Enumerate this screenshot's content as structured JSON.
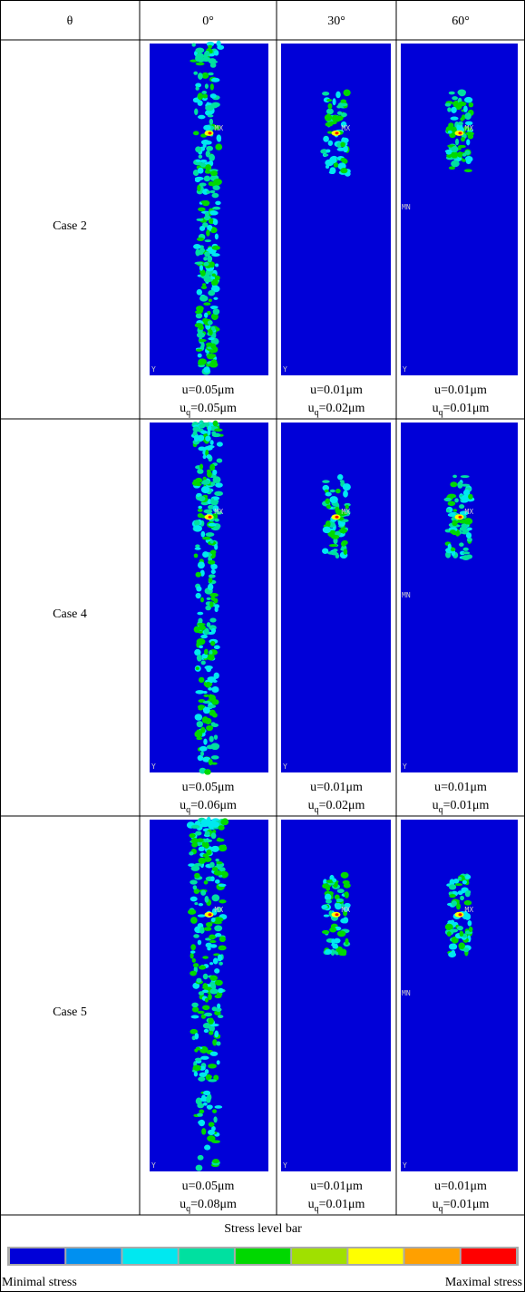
{
  "header": [
    "θ",
    "0°",
    "30°",
    "60°"
  ],
  "uq_symbol": {
    "base": "u",
    "sub": "q"
  },
  "rows": [
    {
      "case": "Case 2",
      "cells": [
        {
          "u": "u=0.05μm",
          "uq": "=0.05μm"
        },
        {
          "u": "u=0.01μm",
          "uq": "=0.02μm"
        },
        {
          "u": "u=0.01μm",
          "uq": "=0.01μm"
        }
      ]
    },
    {
      "case": "Case 4",
      "cells": [
        {
          "u": "u=0.05μm",
          "uq": "=0.06μm"
        },
        {
          "u": "u=0.01μm",
          "uq": "=0.02μm"
        },
        {
          "u": "u=0.01μm",
          "uq": "=0.01μm"
        }
      ]
    },
    {
      "case": "Case 5",
      "cells": [
        {
          "u": "u=0.05μm",
          "uq": "=0.08μm"
        },
        {
          "u": "u=0.01μm",
          "uq": "=0.01μm"
        },
        {
          "u": "u=0.01μm",
          "uq": "=0.01μm"
        }
      ]
    }
  ],
  "image_labels": {
    "axis": "Y",
    "min": "MN",
    "max": "MX"
  },
  "legend": {
    "title": "Stress level bar",
    "colors": [
      "#0000d8",
      "#0090f0",
      "#00e8f0",
      "#00e0a0",
      "#00d800",
      "#a0e000",
      "#ffff00",
      "#ffa000",
      "#ff0000"
    ],
    "min_label": "Minimal stress",
    "max_label": "Maximal stress"
  }
}
